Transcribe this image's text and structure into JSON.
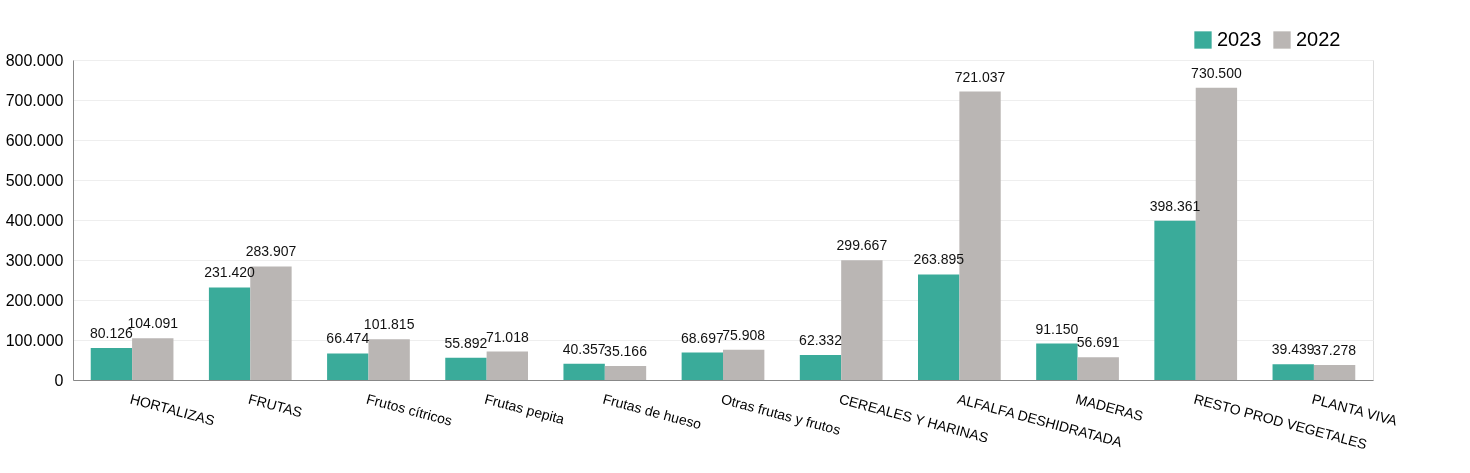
{
  "chart_data": {
    "type": "bar",
    "categories": [
      "HORTALIZAS",
      "FRUTAS",
      "Frutos cítricos",
      "Frutas pepita",
      "Frutas de hueso",
      "Otras frutas y frutos",
      "CEREALES Y HARINAS",
      "ALFALFA DESHIDRATADA",
      "MADERAS",
      "RESTO PROD VEGETALES",
      "PLANTA VIVA"
    ],
    "series": [
      {
        "name": "2023",
        "color": "#3aab9a",
        "values": [
          80126,
          231420,
          66474,
          55892,
          40357,
          68697,
          62332,
          263895,
          91150,
          398361,
          39439
        ],
        "value_labels": [
          "80.126",
          "231.420",
          "66.474",
          "55.892",
          "40.357",
          "68.697",
          "62.332",
          "263.895",
          "91.150",
          "398.361",
          "39.439"
        ]
      },
      {
        "name": "2022",
        "color": "#bab6b4",
        "values": [
          104091,
          283907,
          101815,
          71018,
          35166,
          75908,
          299667,
          721037,
          56691,
          730500,
          37278
        ],
        "value_labels": [
          "104.091",
          "283.907",
          "101.815",
          "71.018",
          "35.166",
          "75.908",
          "299.667",
          "721.037",
          "56.691",
          "730.500",
          "37.278"
        ]
      }
    ],
    "ylim": [
      0,
      800000
    ],
    "yticks": [
      0,
      {
        "value": 100000,
        "label": "100.000"
      },
      {
        "value": 200000,
        "label": "200.000"
      },
      {
        "value": 300000,
        "label": "300.000"
      },
      {
        "value": 400000,
        "label": "400.000"
      },
      {
        "value": 500000,
        "label": "500.000"
      },
      {
        "value": 600000,
        "label": "600.000"
      },
      {
        "value": 700000,
        "label": "700.000"
      },
      {
        "value": 800000,
        "label": "800.000"
      }
    ],
    "grid": "y",
    "legend": "top right"
  }
}
